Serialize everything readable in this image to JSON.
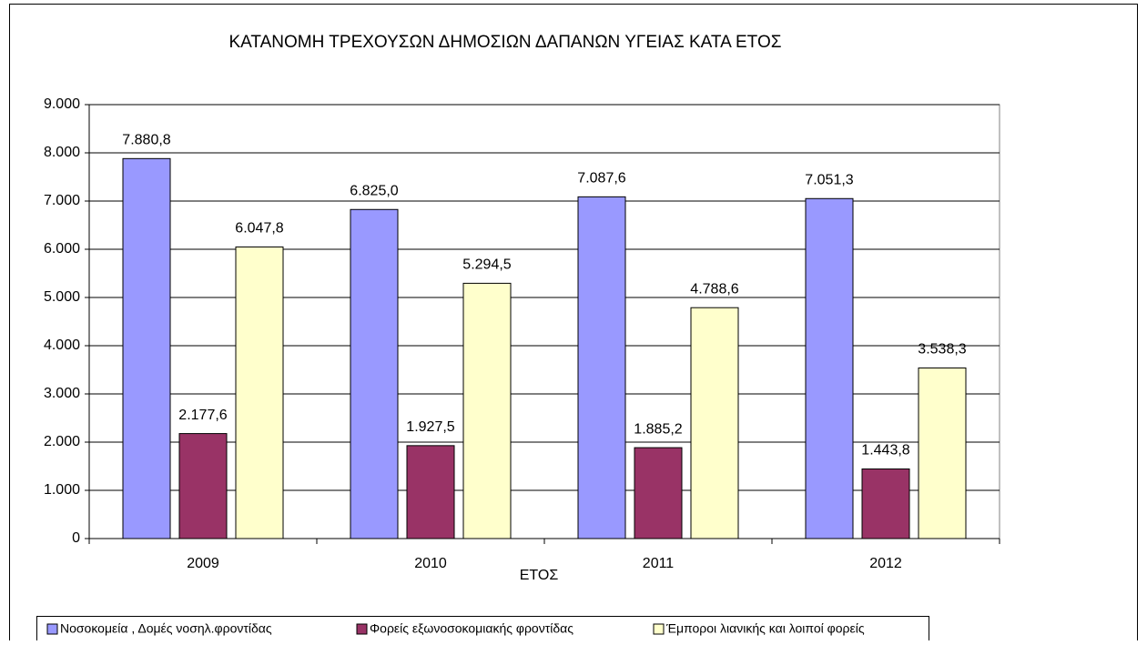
{
  "chart_data": {
    "type": "bar",
    "title": "ΚΑΤΑΝΟΜΗ ΤΡΕΧΟΥΣΩΝ ΔΗΜΟΣΙΩΝ ΔΑΠΑΝΩΝ ΥΓΕΙΑΣ ΚΑΤΑ ΕΤΟΣ",
    "x_label": "ΕΤΟΣ",
    "categories": [
      "2009",
      "2010",
      "2011",
      "2012"
    ],
    "series": [
      {
        "name": "Νοσοκομεία , Δομές νοσηλ.φροντίδας",
        "color": "#9999ff",
        "values": [
          7880.8,
          6825.0,
          7087.6,
          7051.3
        ],
        "value_labels": [
          "7.880,8",
          "6.825,0",
          "7.087,6",
          "7.051,3"
        ]
      },
      {
        "name": "Φορείς εξωνοσοκομιακής φροντίδας",
        "color": "#993366",
        "values": [
          2177.6,
          1927.5,
          1885.2,
          1443.8
        ],
        "value_labels": [
          "2.177,6",
          "1.927,5",
          "1.885,2",
          "1.443,8"
        ]
      },
      {
        "name": "Έμποροι λιανικής και λοιποί φορείς",
        "color": "#ffffcc",
        "values": [
          6047.8,
          5294.5,
          4788.6,
          3538.3
        ],
        "value_labels": [
          "6.047,8",
          "5.294,5",
          "4.788,6",
          "3.538,3"
        ]
      }
    ],
    "ylim": [
      0,
      9000
    ],
    "yticks": [
      0,
      {
        "value": 1000,
        "label": "1.000"
      },
      {
        "value": 2000,
        "label": "2.000"
      },
      {
        "value": 3000,
        "label": "3.000"
      },
      {
        "value": 4000,
        "label": "4.000"
      },
      {
        "value": 5000,
        "label": "5.000"
      },
      {
        "value": 6000,
        "label": "6.000"
      },
      {
        "value": 7000,
        "label": "7.000"
      },
      {
        "value": 8000,
        "label": "8.000"
      },
      {
        "value": 9000,
        "label": "9.000"
      }
    ],
    "grid": true,
    "legend": "bottom"
  }
}
